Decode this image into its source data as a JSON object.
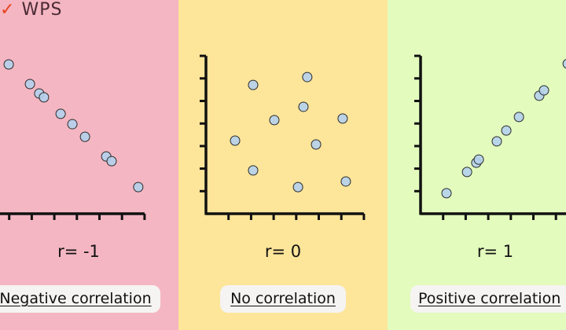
{
  "logo": {
    "mark": "✓",
    "text": "WPS"
  },
  "colors": {
    "negative_bg": "#f4b6c2",
    "none_bg": "#fde59a",
    "positive_bg": "#e3fbbd",
    "point_fill": "#b4d0ec",
    "point_stroke": "#2b2b2b",
    "axis": "#111111"
  },
  "chart_data": [
    {
      "type": "scatter",
      "title": "Negative correlation",
      "annotation": "r= -1",
      "xlim": [
        0,
        7
      ],
      "ylim": [
        0,
        7
      ],
      "grid": false,
      "x": [
        0.98,
        1.92,
        2.33,
        2.54,
        3.28,
        3.8,
        4.36,
        5.3,
        5.54,
        6.72
      ],
      "y": [
        6.62,
        5.75,
        5.33,
        5.16,
        4.43,
        3.97,
        3.41,
        2.54,
        2.33,
        1.18
      ]
    },
    {
      "type": "scatter",
      "title": "No correlation",
      "annotation": "r= 0",
      "xlim": [
        0,
        7
      ],
      "ylim": [
        0,
        7
      ],
      "grid": false,
      "x": [
        1.29,
        2.09,
        2.09,
        3.03,
        4.08,
        4.32,
        4.49,
        4.88,
        6.06,
        6.2
      ],
      "y": [
        3.24,
        1.92,
        5.71,
        4.15,
        1.18,
        4.74,
        6.06,
        3.07,
        4.22,
        1.43
      ]
    },
    {
      "type": "scatter",
      "title": "Positive correlation",
      "annotation": "r= 1",
      "xlim": [
        0,
        7
      ],
      "ylim": [
        0,
        7
      ],
      "grid": false,
      "x": [
        1.15,
        2.06,
        2.47,
        2.58,
        3.38,
        3.8,
        4.36,
        5.26,
        5.47,
        6.52
      ],
      "y": [
        0.91,
        1.85,
        2.26,
        2.4,
        3.21,
        3.69,
        4.29,
        5.23,
        5.47,
        6.65
      ]
    }
  ]
}
